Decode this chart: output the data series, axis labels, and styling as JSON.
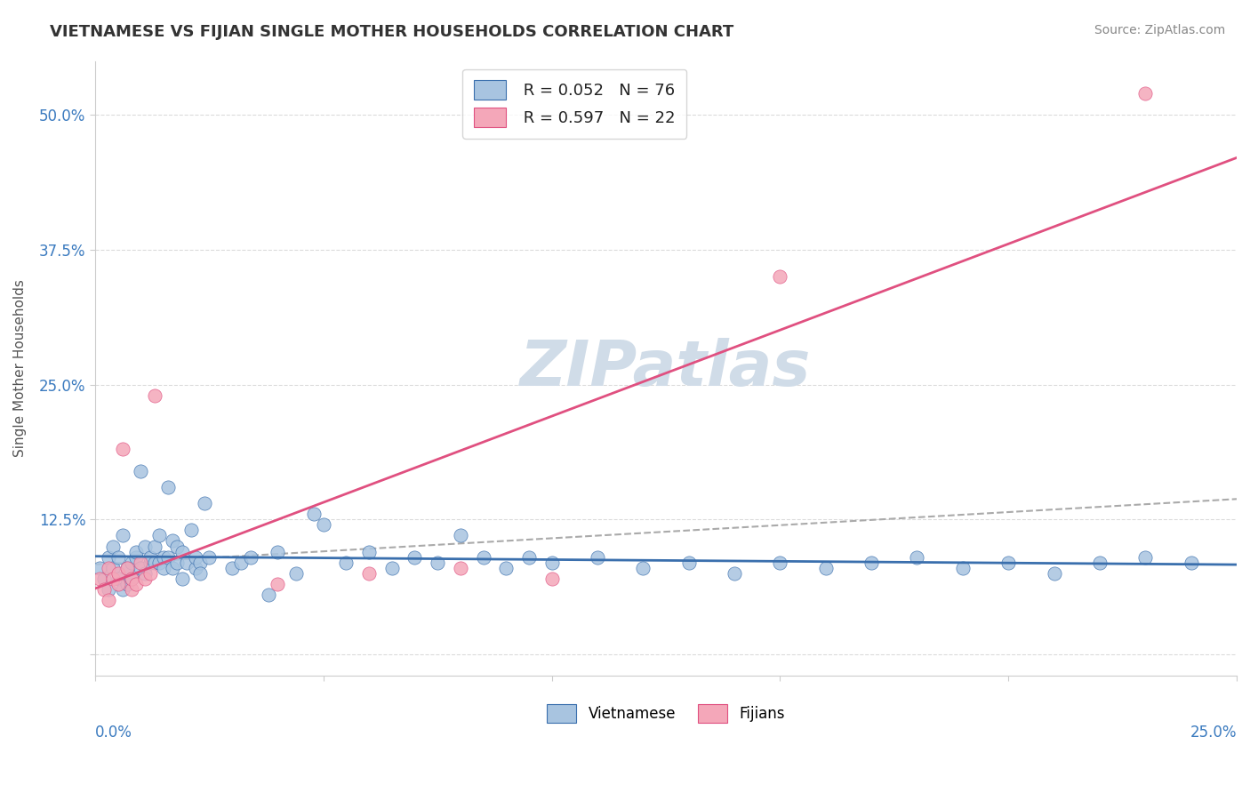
{
  "title": "VIETNAMESE VS FIJIAN SINGLE MOTHER HOUSEHOLDS CORRELATION CHART",
  "source_text": "Source: ZipAtlas.com",
  "ylabel": "Single Mother Households",
  "y_ticks": [
    0.0,
    0.125,
    0.25,
    0.375,
    0.5
  ],
  "y_tick_labels": [
    "",
    "12.5%",
    "25.0%",
    "37.5%",
    "50.0%"
  ],
  "x_ticks": [
    0.0,
    0.05,
    0.1,
    0.15,
    0.2,
    0.25
  ],
  "viet_R": 0.052,
  "viet_N": 76,
  "fiji_R": 0.597,
  "fiji_N": 22,
  "viet_color": "#a8c4e0",
  "fiji_color": "#f4a7b9",
  "viet_line_color": "#3a6fad",
  "fiji_line_color": "#e05080",
  "trend_line_color": "#aaaaaa",
  "background_color": "#ffffff",
  "watermark_color": "#d0dce8",
  "title_color": "#333333",
  "tick_label_color": "#3a7abf",
  "ylabel_color": "#555555",
  "source_color": "#888888",
  "viet_scatter": [
    [
      0.001,
      0.08
    ],
    [
      0.002,
      0.07
    ],
    [
      0.003,
      0.09
    ],
    [
      0.003,
      0.06
    ],
    [
      0.004,
      0.1
    ],
    [
      0.004,
      0.08
    ],
    [
      0.005,
      0.07
    ],
    [
      0.005,
      0.09
    ],
    [
      0.006,
      0.06
    ],
    [
      0.006,
      0.11
    ],
    [
      0.007,
      0.08
    ],
    [
      0.007,
      0.065
    ],
    [
      0.008,
      0.085
    ],
    [
      0.008,
      0.07
    ],
    [
      0.009,
      0.09
    ],
    [
      0.009,
      0.095
    ],
    [
      0.01,
      0.17
    ],
    [
      0.01,
      0.08
    ],
    [
      0.011,
      0.1
    ],
    [
      0.011,
      0.075
    ],
    [
      0.012,
      0.085
    ],
    [
      0.012,
      0.09
    ],
    [
      0.013,
      0.085
    ],
    [
      0.013,
      0.1
    ],
    [
      0.014,
      0.11
    ],
    [
      0.014,
      0.085
    ],
    [
      0.015,
      0.09
    ],
    [
      0.015,
      0.08
    ],
    [
      0.016,
      0.155
    ],
    [
      0.016,
      0.09
    ],
    [
      0.017,
      0.105
    ],
    [
      0.017,
      0.08
    ],
    [
      0.018,
      0.085
    ],
    [
      0.018,
      0.1
    ],
    [
      0.019,
      0.095
    ],
    [
      0.019,
      0.07
    ],
    [
      0.02,
      0.085
    ],
    [
      0.021,
      0.115
    ],
    [
      0.022,
      0.08
    ],
    [
      0.022,
      0.09
    ],
    [
      0.023,
      0.085
    ],
    [
      0.023,
      0.075
    ],
    [
      0.024,
      0.14
    ],
    [
      0.025,
      0.09
    ],
    [
      0.03,
      0.08
    ],
    [
      0.032,
      0.085
    ],
    [
      0.034,
      0.09
    ],
    [
      0.038,
      0.055
    ],
    [
      0.04,
      0.095
    ],
    [
      0.044,
      0.075
    ],
    [
      0.048,
      0.13
    ],
    [
      0.05,
      0.12
    ],
    [
      0.055,
      0.085
    ],
    [
      0.06,
      0.095
    ],
    [
      0.065,
      0.08
    ],
    [
      0.07,
      0.09
    ],
    [
      0.075,
      0.085
    ],
    [
      0.08,
      0.11
    ],
    [
      0.085,
      0.09
    ],
    [
      0.09,
      0.08
    ],
    [
      0.095,
      0.09
    ],
    [
      0.1,
      0.085
    ],
    [
      0.11,
      0.09
    ],
    [
      0.12,
      0.08
    ],
    [
      0.13,
      0.085
    ],
    [
      0.14,
      0.075
    ],
    [
      0.15,
      0.085
    ],
    [
      0.16,
      0.08
    ],
    [
      0.17,
      0.085
    ],
    [
      0.18,
      0.09
    ],
    [
      0.19,
      0.08
    ],
    [
      0.2,
      0.085
    ],
    [
      0.21,
      0.075
    ],
    [
      0.22,
      0.085
    ],
    [
      0.23,
      0.09
    ],
    [
      0.24,
      0.085
    ]
  ],
  "fiji_scatter": [
    [
      0.001,
      0.07
    ],
    [
      0.002,
      0.06
    ],
    [
      0.003,
      0.05
    ],
    [
      0.003,
      0.08
    ],
    [
      0.004,
      0.07
    ],
    [
      0.005,
      0.065
    ],
    [
      0.005,
      0.075
    ],
    [
      0.006,
      0.19
    ],
    [
      0.007,
      0.08
    ],
    [
      0.008,
      0.06
    ],
    [
      0.008,
      0.07
    ],
    [
      0.009,
      0.065
    ],
    [
      0.01,
      0.085
    ],
    [
      0.011,
      0.07
    ],
    [
      0.012,
      0.075
    ],
    [
      0.013,
      0.24
    ],
    [
      0.04,
      0.065
    ],
    [
      0.06,
      0.075
    ],
    [
      0.08,
      0.08
    ],
    [
      0.1,
      0.07
    ],
    [
      0.15,
      0.35
    ],
    [
      0.23,
      0.52
    ]
  ]
}
